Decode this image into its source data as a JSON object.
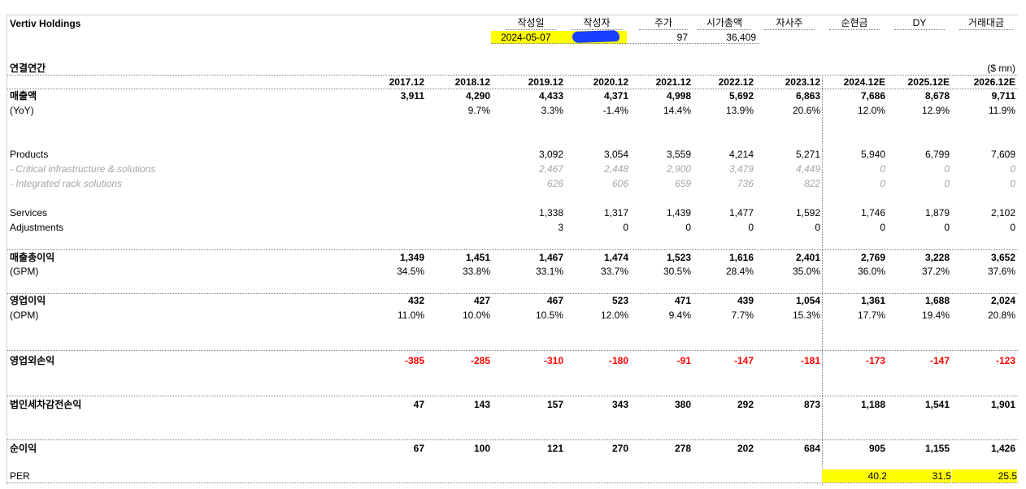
{
  "company": "Vertiv Holdings",
  "info": {
    "labels": [
      "작성일",
      "작성자",
      "주가",
      "시가총액",
      "자사주",
      "순현금",
      "DY",
      "거래대금"
    ],
    "date": "2024-05-07",
    "price": "97",
    "market_cap": "36,409"
  },
  "section_title": "연결연간",
  "unit": "($ mn)",
  "years": [
    "2017.12",
    "2018.12",
    "2019.12",
    "2020.12",
    "2021.12",
    "2022.12",
    "2023.12",
    "2024.12E",
    "2025.12E",
    "2026.12E"
  ],
  "rows": {
    "revenue": {
      "label": "매출액",
      "values": [
        "3,911",
        "4,290",
        "4,433",
        "4,371",
        "4,998",
        "5,692",
        "6,863",
        "7,686",
        "8,678",
        "9,711"
      ]
    },
    "yoy": {
      "label": "(YoY)",
      "values": [
        "",
        "9.7%",
        "3.3%",
        "-1.4%",
        "14.4%",
        "13.9%",
        "20.6%",
        "12.0%",
        "12.9%",
        "11.9%"
      ]
    },
    "products": {
      "label": "Products",
      "values": [
        "",
        "",
        "3,092",
        "3,054",
        "3,559",
        "4,214",
        "5,271",
        "5,940",
        "6,799",
        "7,609"
      ]
    },
    "critical": {
      "label": " - Critical infrastructure & solutions",
      "values": [
        "",
        "",
        "2,467",
        "2,448",
        "2,900",
        "3,479",
        "4,449",
        "0",
        "0",
        "0"
      ]
    },
    "rack": {
      "label": " - Integrated rack solutions",
      "values": [
        "",
        "",
        "626",
        "606",
        "659",
        "736",
        "822",
        "0",
        "0",
        "0"
      ]
    },
    "services": {
      "label": "Services",
      "values": [
        "",
        "",
        "1,338",
        "1,317",
        "1,439",
        "1,477",
        "1,592",
        "1,746",
        "1,879",
        "2,102"
      ]
    },
    "adjustments": {
      "label": "Adjustments",
      "values": [
        "",
        "",
        "3",
        "0",
        "0",
        "0",
        "0",
        "0",
        "0",
        "0"
      ]
    },
    "gross_profit": {
      "label": "매출총이익",
      "values": [
        "1,349",
        "1,451",
        "1,467",
        "1,474",
        "1,523",
        "1,616",
        "2,401",
        "2,769",
        "3,228",
        "3,652"
      ]
    },
    "gpm": {
      "label": "(GPM)",
      "values": [
        "34.5%",
        "33.8%",
        "33.1%",
        "33.7%",
        "30.5%",
        "28.4%",
        "35.0%",
        "36.0%",
        "37.2%",
        "37.6%"
      ]
    },
    "op_income": {
      "label": "영업이익",
      "values": [
        "432",
        "427",
        "467",
        "523",
        "471",
        "439",
        "1,054",
        "1,361",
        "1,688",
        "2,024"
      ]
    },
    "opm": {
      "label": "(OPM)",
      "values": [
        "11.0%",
        "10.0%",
        "10.5%",
        "12.0%",
        "9.4%",
        "7.7%",
        "15.3%",
        "17.7%",
        "19.4%",
        "20.8%"
      ]
    },
    "non_op": {
      "label": "영업외손익",
      "values": [
        "-385",
        "-285",
        "-310",
        "-180",
        "-91",
        "-147",
        "-181",
        "-173",
        "-147",
        "-123"
      ]
    },
    "pretax": {
      "label": "법인세차감전손익",
      "values": [
        "47",
        "143",
        "157",
        "343",
        "380",
        "292",
        "873",
        "1,188",
        "1,541",
        "1,901"
      ]
    },
    "net_income": {
      "label": "순이익",
      "values": [
        "67",
        "100",
        "121",
        "270",
        "278",
        "202",
        "684",
        "905",
        "1,155",
        "1,426"
      ]
    },
    "per": {
      "label": "PER",
      "values": [
        "",
        "",
        "",
        "",
        "",
        "",
        "",
        "40.2",
        "31.5",
        "25.5"
      ]
    }
  }
}
